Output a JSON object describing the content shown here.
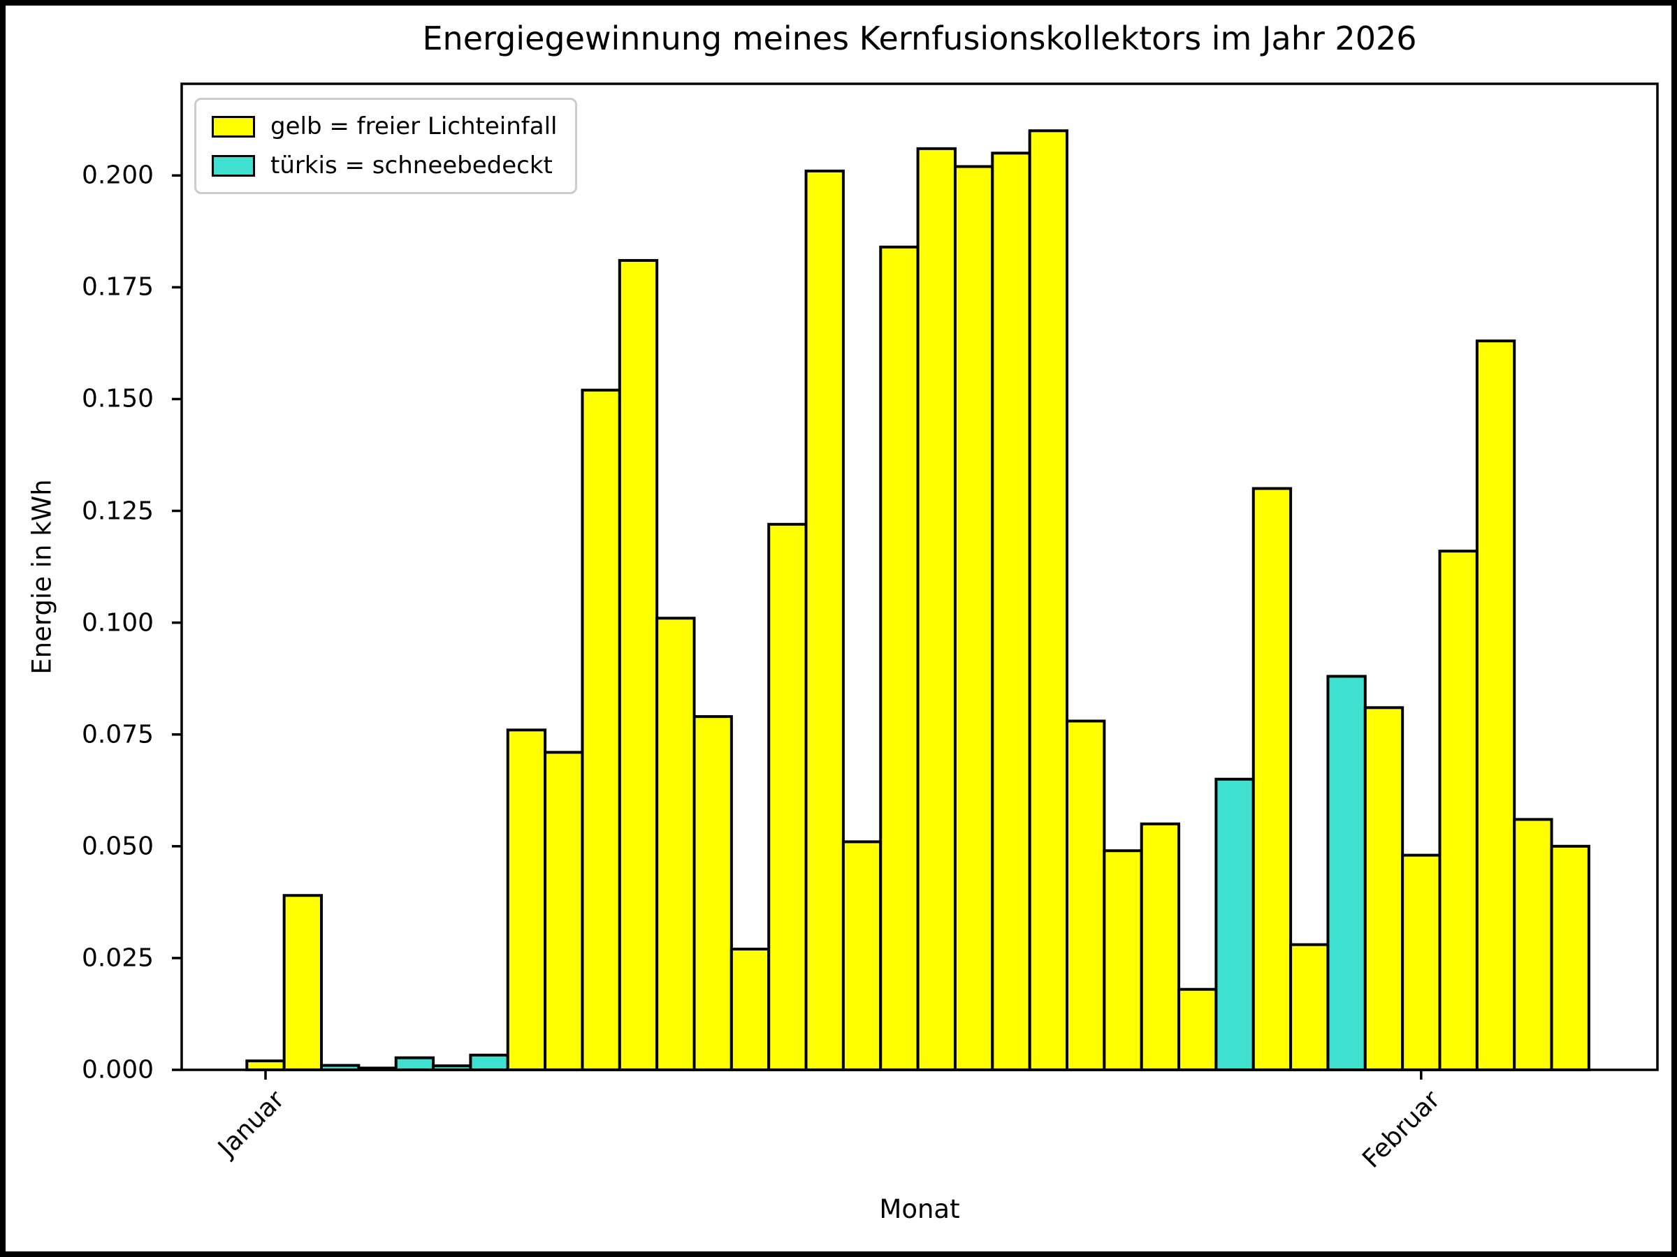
{
  "chart_data": {
    "type": "bar",
    "title": "Energiegewinnung meines Kernfusionskollektors im Jahr 2026",
    "xlabel": "Monat",
    "ylabel": "Energie in kWh",
    "ylim": [
      0,
      0.2205
    ],
    "grid": false,
    "legend_position": "upper left",
    "colors": {
      "free_light": "#FFFF00",
      "snow_covered": "#40E0D0",
      "bar_edge": "#000000",
      "axis": "#000000",
      "legend_border": "#cccccc"
    },
    "legend": [
      {
        "label": "gelb = freier Lichteinfall",
        "color_key": "free_light"
      },
      {
        "label": "türkis = schneebedeckt",
        "color_key": "snow_covered"
      }
    ],
    "y_ticks": [
      {
        "value": 0.0,
        "label": "0.000"
      },
      {
        "value": 0.025,
        "label": "0.025"
      },
      {
        "value": 0.05,
        "label": "0.050"
      },
      {
        "value": 0.075,
        "label": "0.075"
      },
      {
        "value": 0.1,
        "label": "0.100"
      },
      {
        "value": 0.125,
        "label": "0.125"
      },
      {
        "value": 0.15,
        "label": "0.150"
      },
      {
        "value": 0.175,
        "label": "0.175"
      },
      {
        "value": 0.2,
        "label": "0.200"
      }
    ],
    "x_ticks": [
      {
        "label": "Januar",
        "day_index": 0.5
      },
      {
        "label": "Februar",
        "day_index": 31.5
      }
    ],
    "days": [
      {
        "day": "Januar 1",
        "value": 0.002,
        "snow": false
      },
      {
        "day": "Januar 2",
        "value": 0.039,
        "snow": false
      },
      {
        "day": "Januar 3",
        "value": 0.001,
        "snow": true
      },
      {
        "day": "Januar 4",
        "value": 0.0004,
        "snow": true
      },
      {
        "day": "Januar 5",
        "value": 0.0027,
        "snow": true
      },
      {
        "day": "Januar 6",
        "value": 0.0009,
        "snow": true
      },
      {
        "day": "Januar 7",
        "value": 0.0033,
        "snow": true
      },
      {
        "day": "Januar 8",
        "value": 0.076,
        "snow": false
      },
      {
        "day": "Januar 9",
        "value": 0.071,
        "snow": false
      },
      {
        "day": "Januar 10",
        "value": 0.152,
        "snow": false
      },
      {
        "day": "Januar 11",
        "value": 0.181,
        "snow": false
      },
      {
        "day": "Januar 12",
        "value": 0.101,
        "snow": false
      },
      {
        "day": "Januar 13",
        "value": 0.079,
        "snow": false
      },
      {
        "day": "Januar 14",
        "value": 0.027,
        "snow": false
      },
      {
        "day": "Januar 15",
        "value": 0.122,
        "snow": false
      },
      {
        "day": "Januar 16",
        "value": 0.201,
        "snow": false
      },
      {
        "day": "Januar 17",
        "value": 0.051,
        "snow": false
      },
      {
        "day": "Januar 18",
        "value": 0.184,
        "snow": false
      },
      {
        "day": "Januar 19",
        "value": 0.206,
        "snow": false
      },
      {
        "day": "Januar 20",
        "value": 0.202,
        "snow": false
      },
      {
        "day": "Januar 21",
        "value": 0.205,
        "snow": false
      },
      {
        "day": "Januar 22",
        "value": 0.21,
        "snow": false
      },
      {
        "day": "Januar 23",
        "value": 0.078,
        "snow": false
      },
      {
        "day": "Januar 24",
        "value": 0.049,
        "snow": false
      },
      {
        "day": "Januar 25",
        "value": 0.055,
        "snow": false
      },
      {
        "day": "Januar 26",
        "value": 0.018,
        "snow": false
      },
      {
        "day": "Januar 27",
        "value": 0.065,
        "snow": true
      },
      {
        "day": "Januar 28",
        "value": 0.13,
        "snow": false
      },
      {
        "day": "Januar 29",
        "value": 0.028,
        "snow": false
      },
      {
        "day": "Januar 30",
        "value": 0.088,
        "snow": true
      },
      {
        "day": "Januar 31",
        "value": 0.081,
        "snow": false
      },
      {
        "day": "Februar 1",
        "value": 0.048,
        "snow": false
      },
      {
        "day": "Februar 2",
        "value": 0.116,
        "snow": false
      },
      {
        "day": "Februar 3",
        "value": 0.163,
        "snow": false
      },
      {
        "day": "Februar 4",
        "value": 0.056,
        "snow": false
      },
      {
        "day": "Februar 5",
        "value": 0.05,
        "snow": false
      }
    ]
  }
}
